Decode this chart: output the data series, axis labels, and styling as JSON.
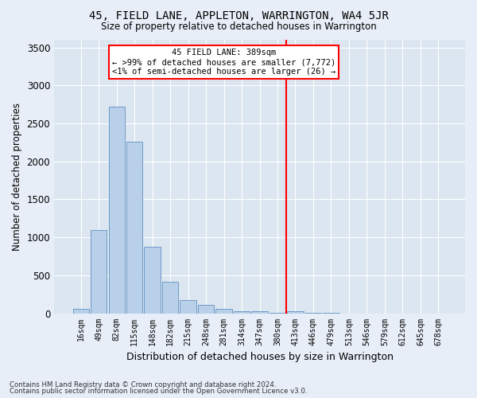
{
  "title": "45, FIELD LANE, APPLETON, WARRINGTON, WA4 5JR",
  "subtitle": "Size of property relative to detached houses in Warrington",
  "xlabel": "Distribution of detached houses by size in Warrington",
  "ylabel": "Number of detached properties",
  "categories": [
    "16sqm",
    "49sqm",
    "82sqm",
    "115sqm",
    "148sqm",
    "182sqm",
    "215sqm",
    "248sqm",
    "281sqm",
    "314sqm",
    "347sqm",
    "380sqm",
    "413sqm",
    "446sqm",
    "479sqm",
    "513sqm",
    "546sqm",
    "579sqm",
    "612sqm",
    "645sqm",
    "678sqm"
  ],
  "values": [
    55,
    1100,
    2720,
    2260,
    880,
    415,
    175,
    115,
    60,
    30,
    22,
    8,
    28,
    5,
    5,
    0,
    0,
    0,
    0,
    0,
    0
  ],
  "bar_color": "#b8d0ea",
  "bar_edge_color": "#6090c0",
  "ylim": [
    0,
    3600
  ],
  "yticks": [
    0,
    500,
    1000,
    1500,
    2000,
    2500,
    3000,
    3500
  ],
  "annotation_line1": "45 FIELD LANE: 389sqm",
  "annotation_line2": "← >99% of detached houses are smaller (7,772)",
  "annotation_line3": "<1% of semi-detached houses are larger (26) →",
  "bg_color": "#dce6f0",
  "fig_bg_color": "#e8eef8",
  "grid_color": "#ffffff",
  "footer1": "Contains HM Land Registry data © Crown copyright and database right 2024.",
  "footer2": "Contains public sector information licensed under the Open Government Licence v3.0."
}
